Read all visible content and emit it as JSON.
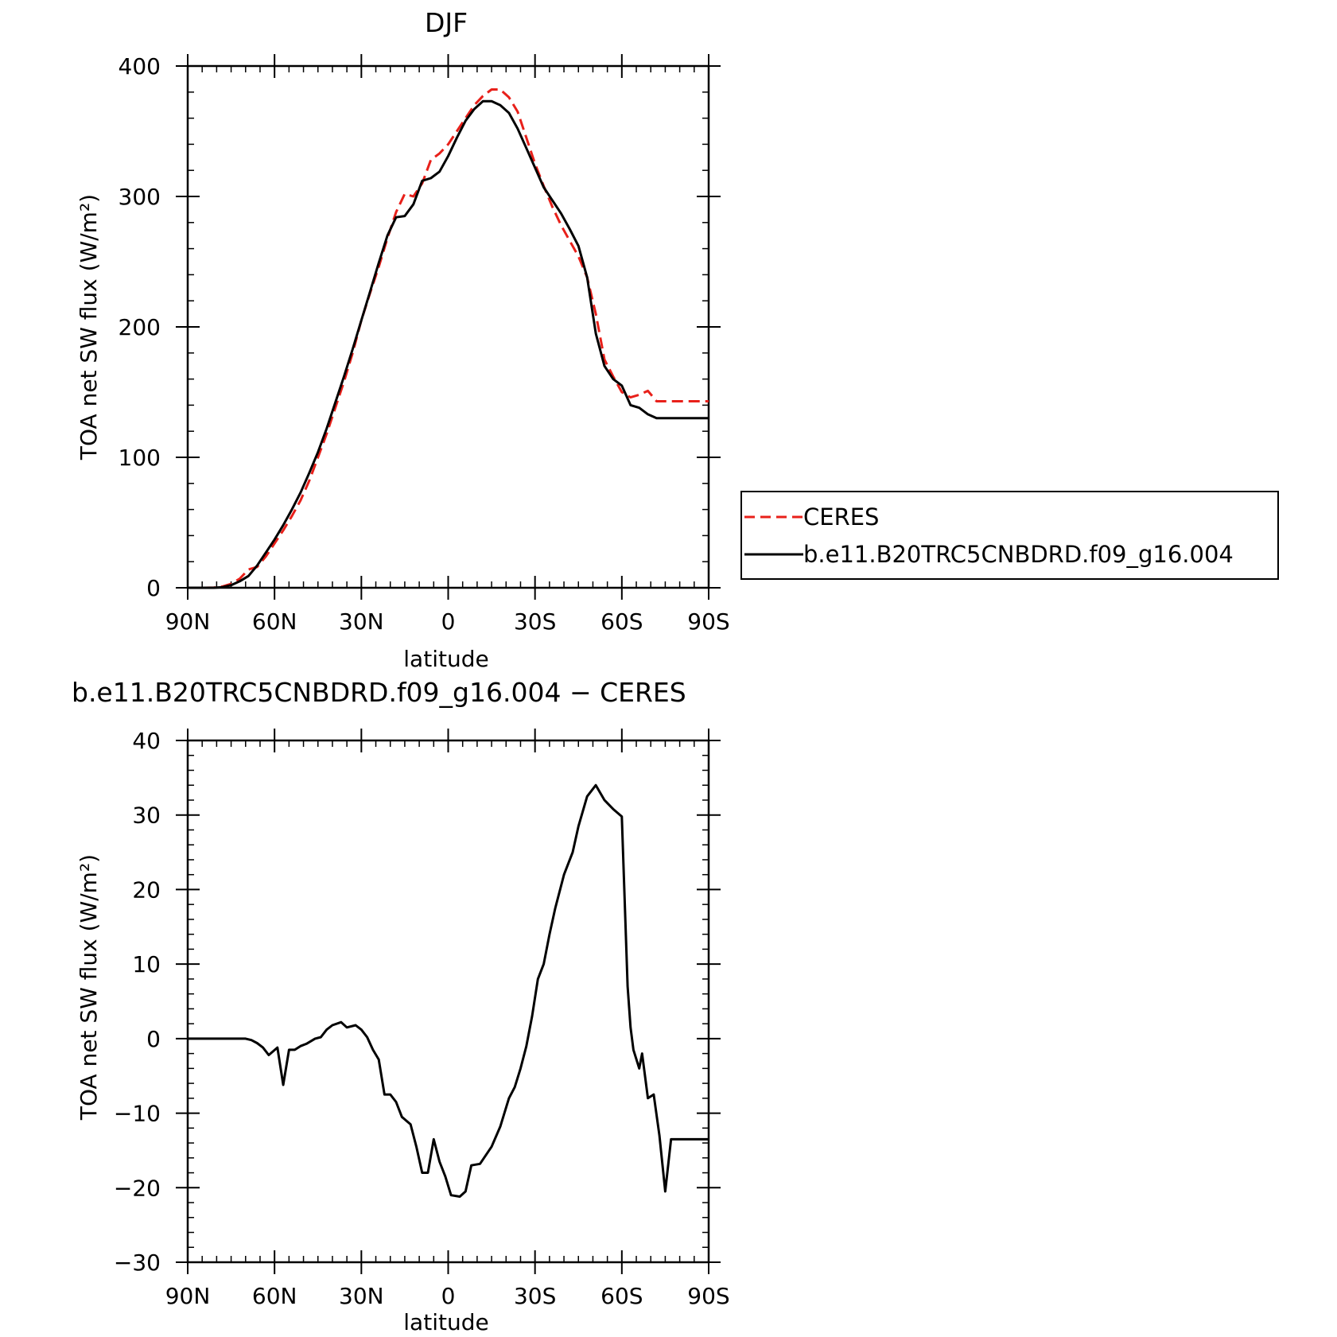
{
  "chart_data": [
    {
      "type": "line",
      "title": "DJF",
      "xlabel": "latitude",
      "ylabel": "TOA net SW flux (W/m²)",
      "xlim": [
        90,
        -90
      ],
      "ylim": [
        0,
        400
      ],
      "xticks": [
        {
          "value": 90,
          "label": "90N"
        },
        {
          "value": 60,
          "label": "60N"
        },
        {
          "value": 30,
          "label": "30N"
        },
        {
          "value": 0,
          "label": "0"
        },
        {
          "value": -30,
          "label": "30S"
        },
        {
          "value": -60,
          "label": "60S"
        },
        {
          "value": -90,
          "label": "90S"
        }
      ],
      "yticks": [
        {
          "value": 0,
          "label": "0"
        },
        {
          "value": 100,
          "label": "100"
        },
        {
          "value": 200,
          "label": "200"
        },
        {
          "value": 300,
          "label": "300"
        },
        {
          "value": 400,
          "label": "400"
        }
      ],
      "legend_position": "right",
      "series": [
        {
          "name": "CERES",
          "color": "#e8201a",
          "dash": "dashed",
          "x": [
            90,
            87,
            84,
            81,
            78,
            75,
            72,
            69,
            66,
            63,
            60,
            57,
            54,
            51,
            48,
            45,
            42,
            39,
            36,
            33,
            30,
            27,
            24,
            21,
            18,
            15,
            12,
            9,
            6,
            3,
            0,
            -3,
            -6,
            -9,
            -12,
            -15,
            -18,
            -21,
            -24,
            -27,
            -30,
            -33,
            -36,
            -39,
            -42,
            -45,
            -48,
            -51,
            -54,
            -57,
            -60,
            -63,
            -66,
            -69,
            -72,
            -75,
            -78,
            -81,
            -84,
            -87,
            -90
          ],
          "values": [
            0,
            0,
            0,
            0.2,
            1,
            3,
            7,
            14,
            16,
            24,
            34,
            44,
            55,
            67,
            82,
            100,
            118,
            138,
            158,
            180,
            205,
            226,
            246,
            268,
            288,
            302,
            300,
            310,
            328,
            333,
            340,
            350,
            360,
            370,
            377,
            382,
            382,
            376,
            365,
            345,
            325,
            308,
            292,
            278,
            266,
            254,
            238,
            210,
            175,
            162,
            150,
            146,
            148,
            151,
            143,
            143,
            143,
            143,
            143,
            143,
            143
          ]
        },
        {
          "name": "b.e11.B20TRC5CNBDRD.f09_g16.004",
          "color": "#000000",
          "dash": "solid",
          "x": [
            90,
            87,
            84,
            81,
            78,
            75,
            72,
            69,
            66,
            63,
            60,
            57,
            54,
            51,
            48,
            45,
            42,
            39,
            36,
            33,
            30,
            27,
            24,
            21,
            18,
            15,
            12,
            9,
            6,
            3,
            0,
            -3,
            -6,
            -9,
            -12,
            -15,
            -18,
            -21,
            -24,
            -27,
            -30,
            -33,
            -36,
            -39,
            -42,
            -45,
            -48,
            -51,
            -54,
            -57,
            -60,
            -63,
            -66,
            -69,
            -72,
            -75,
            -78,
            -81,
            -84,
            -87,
            -90
          ],
          "values": [
            0,
            0,
            0,
            0,
            0.5,
            2,
            5,
            9,
            17,
            27,
            37,
            48,
            60,
            73,
            88,
            104,
            122,
            142,
            162,
            183,
            205,
            227,
            249,
            270,
            284,
            285,
            294,
            312,
            314,
            319,
            331,
            345,
            358,
            367,
            373,
            373,
            370,
            364,
            352,
            337,
            322,
            307,
            297,
            287,
            275,
            262,
            238,
            195,
            170,
            160,
            155,
            140,
            138,
            133,
            130,
            130,
            130,
            130,
            130,
            130,
            130
          ]
        }
      ]
    },
    {
      "type": "line",
      "title": "b.e11.B20TRC5CNBDRD.f09_g16.004 − CERES",
      "xlabel": "latitude",
      "ylabel": "TOA net SW flux (W/m²)",
      "xlim": [
        90,
        -90
      ],
      "ylim": [
        -30,
        40
      ],
      "xticks": [
        {
          "value": 90,
          "label": "90N"
        },
        {
          "value": 60,
          "label": "60N"
        },
        {
          "value": 30,
          "label": "30N"
        },
        {
          "value": 0,
          "label": "0"
        },
        {
          "value": -30,
          "label": "30S"
        },
        {
          "value": -60,
          "label": "60S"
        },
        {
          "value": -90,
          "label": "90S"
        }
      ],
      "yticks": [
        {
          "value": -30,
          "label": "−30"
        },
        {
          "value": -20,
          "label": "−20"
        },
        {
          "value": -10,
          "label": "−10"
        },
        {
          "value": 0,
          "label": "0"
        },
        {
          "value": 10,
          "label": "10"
        },
        {
          "value": 20,
          "label": "20"
        },
        {
          "value": 30,
          "label": "30"
        },
        {
          "value": 40,
          "label": "40"
        }
      ],
      "series": [
        {
          "color": "#000000",
          "dash": "solid",
          "x": [
            90,
            85,
            80,
            76,
            73,
            70,
            68,
            66,
            64,
            62,
            59,
            57,
            55,
            53,
            51,
            49,
            46,
            44,
            42,
            40,
            37,
            35,
            32,
            30,
            28,
            26,
            24,
            22,
            20,
            18,
            16,
            13,
            11,
            9,
            7,
            5,
            3,
            1,
            -1,
            -4,
            -6,
            -8,
            -11,
            -15,
            -18,
            -21,
            -23,
            -25,
            -27,
            -29,
            -31,
            -33,
            -35,
            -37,
            -40,
            -43,
            -45,
            -48,
            -51,
            -54,
            -57,
            -60,
            -62,
            -63,
            -64,
            -66,
            -67,
            -69,
            -71,
            -73,
            -75,
            -77,
            -79,
            -81,
            -83,
            -85,
            -87,
            -88,
            -89,
            -90
          ],
          "values": [
            0,
            0,
            0,
            0,
            0,
            0,
            -0.2,
            -0.6,
            -1.2,
            -2.2,
            -1.2,
            -6.2,
            -1.5,
            -1.5,
            -1,
            -0.7,
            0,
            0.2,
            1.2,
            1.8,
            2.2,
            1.5,
            1.8,
            1.2,
            0.2,
            -1.5,
            -2.8,
            -7.5,
            -7.5,
            -8.5,
            -10.5,
            -11.5,
            -14.5,
            -18,
            -18,
            -13.5,
            -16.5,
            -18.5,
            -21,
            -21.2,
            -20.5,
            -17,
            -16.8,
            -14.5,
            -11.8,
            -8,
            -6.5,
            -4,
            -1,
            3,
            8,
            10,
            14,
            17.5,
            22,
            25,
            28.5,
            32.5,
            34,
            32,
            30.8,
            29.8,
            7,
            1.5,
            -1.5,
            -4,
            -2,
            -8,
            -7.5,
            -13,
            -20.5,
            -13.5,
            -13.5,
            -13.5,
            -13.5,
            -13.5,
            -13.5,
            -13.5,
            -13.5,
            -13.5
          ]
        }
      ]
    }
  ]
}
